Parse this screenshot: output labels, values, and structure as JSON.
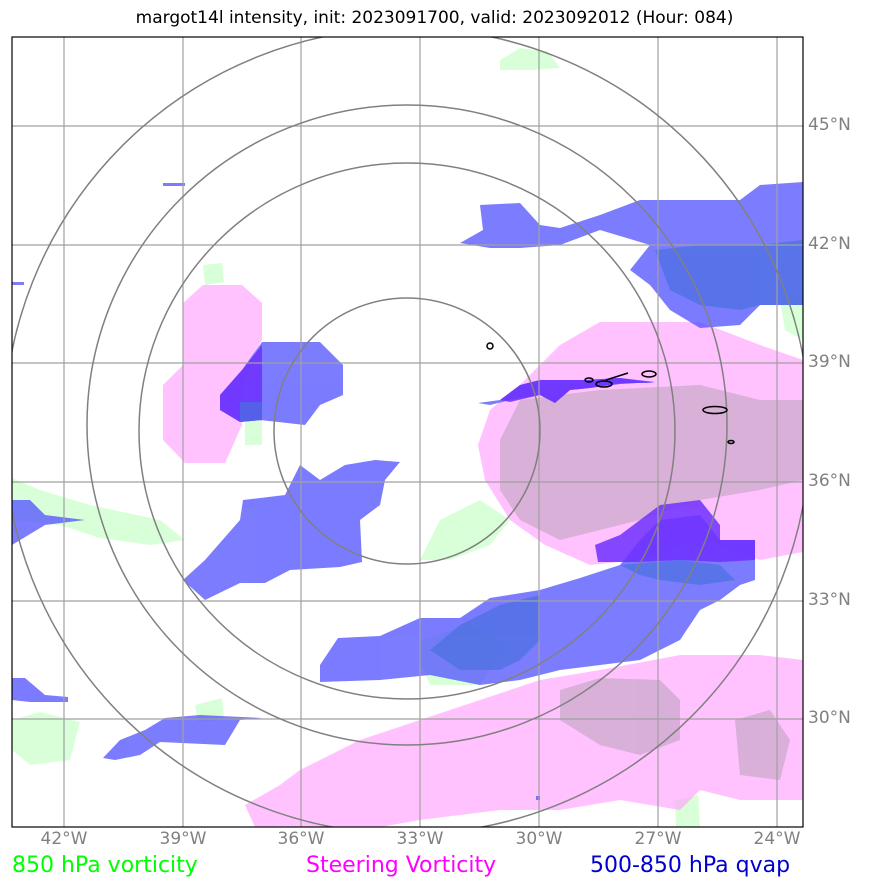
{
  "title": "margot14l intensity, init: 2023091700, valid: 2023092012 (Hour: 084)",
  "lat_labels": [
    "45°N",
    "42°N",
    "39°N",
    "36°N",
    "33°N",
    "30°N"
  ],
  "lon_labels": [
    "42°W",
    "39°W",
    "36°W",
    "33°W",
    "30°W",
    "27°W",
    "24°W"
  ],
  "legend": {
    "vorticity_850": "850 hPa vorticity",
    "steering": "Steering Vorticity",
    "qvap": "500-850 hPa qvap"
  },
  "colors": {
    "vorticity_850": "#00ff00",
    "steering": "#ff00ff",
    "qvap": "#0000cd",
    "grid": "#808080",
    "contour": "#000000"
  },
  "range_rings_count": 4,
  "fields": [
    "850 hPa vorticity",
    "Steering Vorticity",
    "500-850 hPa qvap",
    "intensity contours"
  ]
}
